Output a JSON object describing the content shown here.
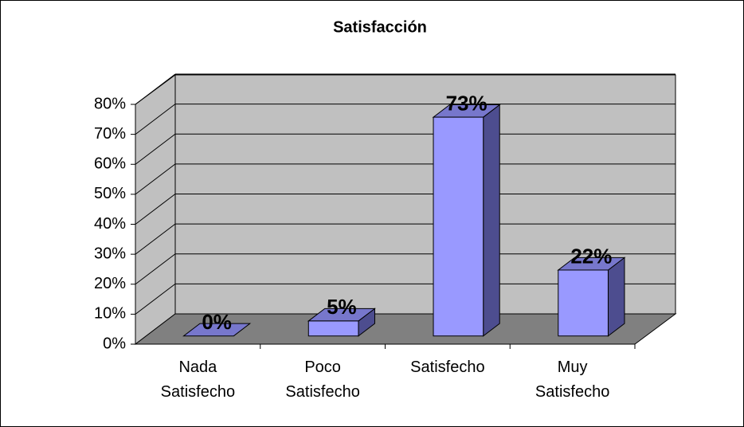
{
  "chart_data": {
    "type": "bar3d",
    "title": "Satisfacción",
    "categories": [
      "Nada Satisfecho",
      "Poco Satisfecho",
      "Satisfecho",
      "Muy Satisfecho"
    ],
    "values": [
      0,
      5,
      73,
      22
    ],
    "value_labels": [
      "0%",
      "5%",
      "73%",
      "22%"
    ],
    "color": "#9999ff",
    "ylim": [
      0,
      80
    ],
    "yticks": [
      {
        "value": 0,
        "label": "0%"
      },
      {
        "value": 10,
        "label": "10%"
      },
      {
        "value": 20,
        "label": "20%"
      },
      {
        "value": 30,
        "label": "30%"
      },
      {
        "value": 40,
        "label": "40%"
      },
      {
        "value": 50,
        "label": "50%"
      },
      {
        "value": 60,
        "label": "60%"
      },
      {
        "value": 70,
        "label": "70%"
      },
      {
        "value": 80,
        "label": "80%"
      }
    ],
    "grid": true
  }
}
